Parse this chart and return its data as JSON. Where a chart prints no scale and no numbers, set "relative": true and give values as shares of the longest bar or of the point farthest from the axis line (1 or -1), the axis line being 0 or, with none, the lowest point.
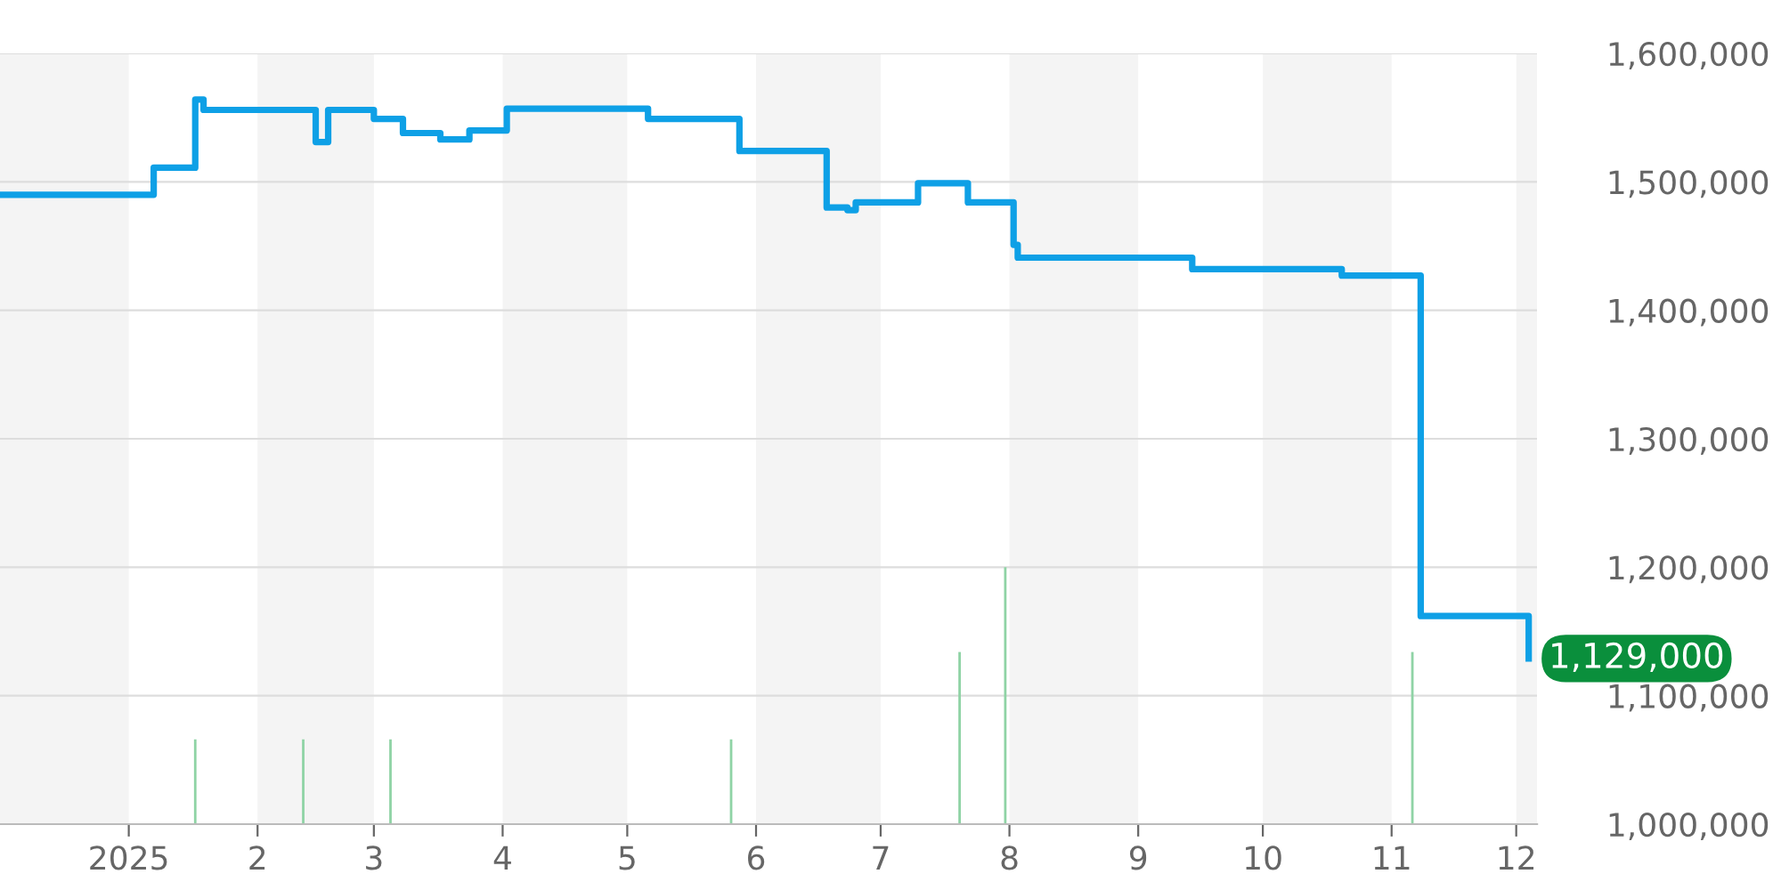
{
  "chart_data": [
    {
      "type": "step",
      "x": [
        "2024-12-01",
        "2025-01-07",
        "2025-01-17",
        "2025-01-19",
        "2025-02-15",
        "2025-02-18",
        "2025-03-01",
        "2025-03-08",
        "2025-03-17",
        "2025-03-24",
        "2025-04-02",
        "2025-05-06",
        "2025-05-28",
        "2025-06-18",
        "2025-06-23",
        "2025-06-25",
        "2025-07-10",
        "2025-07-22",
        "2025-08-02",
        "2025-08-03",
        "2025-09-14",
        "2025-10-20",
        "2025-11-08",
        "2025-12-04"
      ],
      "series": [
        {
          "color": "#0ea0e6",
          "values": [
            1490000,
            1511000,
            1564000,
            1556000,
            1531000,
            1556000,
            1549000,
            1538000,
            1533000,
            1540000,
            1557000,
            1549000,
            1524000,
            1480000,
            1478000,
            1484000,
            1499000,
            1484000,
            1451000,
            1441000,
            1432000,
            1427000,
            1162000,
            1129000
          ]
        }
      ],
      "xlim": [
        "2024-12-01",
        "2025-12-06"
      ],
      "xticks": [
        {
          "value": "2025-01-01",
          "label": "2025"
        },
        {
          "value": "2025-02-01",
          "label": "2"
        },
        {
          "value": "2025-03-01",
          "label": "3"
        },
        {
          "value": "2025-04-01",
          "label": "4"
        },
        {
          "value": "2025-05-01",
          "label": "5"
        },
        {
          "value": "2025-06-01",
          "label": "6"
        },
        {
          "value": "2025-07-01",
          "label": "7"
        },
        {
          "value": "2025-08-01",
          "label": "8"
        },
        {
          "value": "2025-09-01",
          "label": "9"
        },
        {
          "value": "2025-10-01",
          "label": "10"
        },
        {
          "value": "2025-11-01",
          "label": "11"
        },
        {
          "value": "2025-12-01",
          "label": "12"
        }
      ],
      "ylim": [
        1000000,
        1600000
      ],
      "yticks": [
        {
          "value": 1000000,
          "label": "1,000,000"
        },
        {
          "value": 1100000,
          "label": "1,100,000"
        },
        {
          "value": 1200000,
          "label": "1,200,000"
        },
        {
          "value": 1300000,
          "label": "1,300,000"
        },
        {
          "value": 1400000,
          "label": "1,400,000"
        },
        {
          "value": 1500000,
          "label": "1,500,000"
        },
        {
          "value": 1600000,
          "label": "1,600,000"
        }
      ],
      "grid": "y",
      "bands": [
        {
          "axis": "x",
          "from": "2024-12-01",
          "to": "2025-01-01",
          "color": "#f4f4f4"
        },
        {
          "axis": "x",
          "from": "2025-02-01",
          "to": "2025-03-01",
          "color": "#f4f4f4"
        },
        {
          "axis": "x",
          "from": "2025-04-01",
          "to": "2025-05-01",
          "color": "#f4f4f4"
        },
        {
          "axis": "x",
          "from": "2025-06-01",
          "to": "2025-07-01",
          "color": "#f4f4f4"
        },
        {
          "axis": "x",
          "from": "2025-08-01",
          "to": "2025-09-01",
          "color": "#f4f4f4"
        },
        {
          "axis": "x",
          "from": "2025-10-01",
          "to": "2025-11-01",
          "color": "#f4f4f4"
        },
        {
          "axis": "x",
          "from": "2025-12-01",
          "to": "2025-12-06",
          "color": "#f4f4f4"
        }
      ],
      "annotations": [
        {
          "text": "1,129,000",
          "x": "2025-12-04",
          "y": 1129000
        }
      ]
    },
    {
      "type": "bar",
      "relative": true,
      "x": [
        "2025-01-17",
        "2025-02-12",
        "2025-03-05",
        "2025-05-26",
        "2025-07-20",
        "2025-07-31",
        "2025-11-06"
      ],
      "xlim": [
        "2024-12-01",
        "2025-12-06"
      ],
      "series": [
        {
          "color": "#8fd3a5",
          "values": [
            0.33,
            0.33,
            0.33,
            0.33,
            0.67,
            1,
            0.67
          ]
        }
      ]
    }
  ]
}
